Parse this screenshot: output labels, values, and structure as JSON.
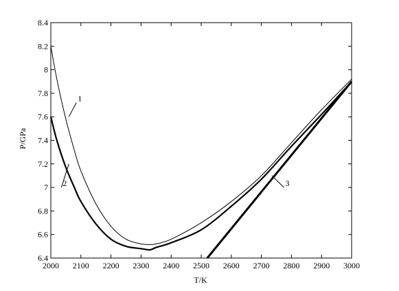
{
  "chart_data": {
    "type": "line",
    "title": "",
    "xlabel": "T/K",
    "ylabel": "P/GPa",
    "xlim": [
      2000,
      3000
    ],
    "ylim": [
      6.4,
      8.4
    ],
    "x_ticks": [
      2000,
      2100,
      2200,
      2300,
      2400,
      2500,
      2600,
      2700,
      2800,
      2900,
      3000
    ],
    "y_ticks": [
      6.4,
      6.6,
      6.8,
      7.0,
      7.2,
      7.4,
      7.6,
      7.8,
      8.0,
      8.2,
      8.4
    ],
    "x_tick_labels": [
      "2000",
      "2100",
      "2200",
      "2300",
      "2400",
      "2500",
      "2600",
      "2700",
      "2800",
      "2900",
      "3000"
    ],
    "y_tick_labels": [
      "6.4",
      "6.6",
      "6.8",
      "7",
      "7.2",
      "7.4",
      "7.6",
      "7.8",
      "8",
      "8.2",
      "8.4"
    ],
    "grid": false,
    "legend": "none",
    "series": [
      {
        "label": "1",
        "color": "#000000",
        "weight": "thin",
        "x": [
          2000,
          2020,
          2050,
          2080,
          2100,
          2150,
          2200,
          2250,
          2300,
          2330,
          2350,
          2400,
          2500,
          2600,
          2700,
          2800,
          2900,
          3000
        ],
        "y": [
          8.2,
          7.92,
          7.58,
          7.3,
          7.14,
          6.86,
          6.67,
          6.56,
          6.52,
          6.515,
          6.52,
          6.56,
          6.7,
          6.88,
          7.1,
          7.38,
          7.66,
          7.92
        ]
      },
      {
        "label": "2",
        "color": "#000000",
        "weight": "medium",
        "x": [
          2000,
          2020,
          2050,
          2080,
          2100,
          2150,
          2200,
          2250,
          2300,
          2330,
          2350,
          2400,
          2500,
          2600,
          2700,
          2800,
          2900,
          3000
        ],
        "y": [
          7.6,
          7.4,
          7.17,
          6.99,
          6.88,
          6.69,
          6.56,
          6.5,
          6.48,
          6.47,
          6.49,
          6.53,
          6.64,
          6.84,
          7.07,
          7.35,
          7.62,
          7.9
        ]
      },
      {
        "label": "3",
        "color": "#000000",
        "weight": "thick",
        "x": [
          2520,
          3000
        ],
        "y": [
          6.4,
          7.9
        ]
      }
    ],
    "annotations": [
      {
        "text": "1",
        "x": 2085,
        "y": 7.72,
        "line_to": [
          2060,
          7.6
        ]
      },
      {
        "text": "2",
        "x": 2035,
        "y": 7.0,
        "line_to": [
          2060,
          7.2
        ]
      },
      {
        "text": "3",
        "x": 2775,
        "y": 7.0,
        "line_to": [
          2735,
          7.1
        ]
      }
    ]
  }
}
